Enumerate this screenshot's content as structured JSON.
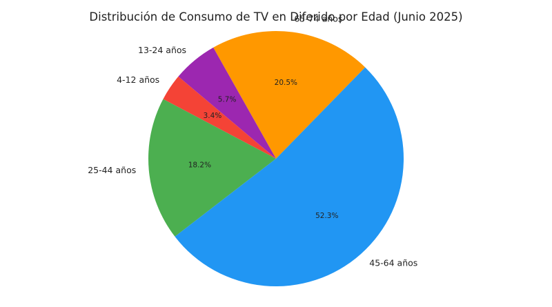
{
  "chart_data": {
    "type": "pie",
    "title": "Distribución de Consumo de TV en Diferido por Edad (Junio 2025)",
    "slices": [
      {
        "label": "65-74 años",
        "value": 20.5,
        "pct_label": "20.5%",
        "color": "#FF9800"
      },
      {
        "label": "13-24 años",
        "value": 5.7,
        "pct_label": "5.7%",
        "color": "#9C27B0"
      },
      {
        "label": "4-12 años",
        "value": 3.4,
        "pct_label": "3.4%",
        "color": "#F44336"
      },
      {
        "label": "25-44 años",
        "value": 18.2,
        "pct_label": "18.2%",
        "color": "#4CAF50"
      },
      {
        "label": "45-64 años",
        "value": 52.3,
        "pct_label": "52.3%",
        "color": "#2196F3"
      }
    ],
    "start_angle_deg": 45.7,
    "direction": "counterclockwise",
    "legend": "none"
  }
}
